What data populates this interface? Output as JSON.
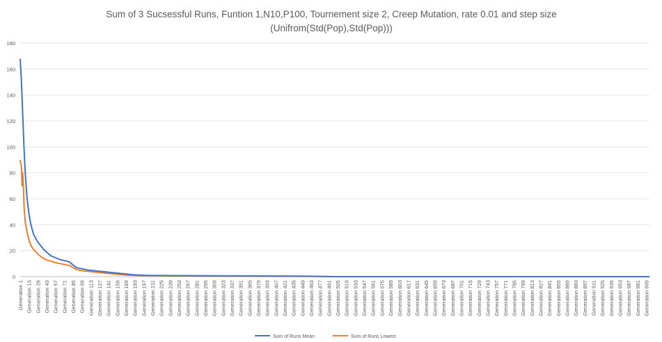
{
  "chart_data": {
    "type": "line",
    "title": "Sum of 3 Sucsessful Runs, Funtion 1,N10,P100, Tournement size 2, Creep Mutation, rate 0.01 and step size",
    "subtitle": "(Unifrom(Std(Pop),Std(Pop)))",
    "xlabel": "",
    "ylabel": "",
    "ylim": [
      0,
      180
    ],
    "yticks": [
      0,
      20,
      40,
      60,
      80,
      100,
      120,
      140,
      160,
      180
    ],
    "xlim": [
      1,
      1000
    ],
    "x_category_prefix": "Generation ",
    "x_tick_labels": [
      "Generation 1",
      "Generation 15",
      "Generation 29",
      "Generation 43",
      "Generation 57",
      "Generation 71",
      "Generation 85",
      "Generation 99",
      "Generation 113",
      "Generation 127",
      "Generation 141",
      "Generation 155",
      "Generation 169",
      "Generation 183",
      "Generation 197",
      "Generation 211",
      "Generation 225",
      "Generation 239",
      "Generation 253",
      "Generation 267",
      "Generation 281",
      "Generation 295",
      "Generation 309",
      "Generation 323",
      "Generation 337",
      "Generation 351",
      "Generation 365",
      "Generation 379",
      "Generation 393",
      "Generation 407",
      "Generation 421",
      "Generation 435",
      "Generation 449",
      "Generation 463",
      "Generation 477",
      "Generation 491",
      "Generation 505",
      "Generation 519",
      "Generation 533",
      "Generation 547",
      "Generation 561",
      "Generation 575",
      "Generation 589",
      "Generation 603",
      "Generation 617",
      "Generation 631",
      "Generation 645",
      "Generation 659",
      "Generation 673",
      "Generation 687",
      "Generation 701",
      "Generation 715",
      "Generation 729",
      "Generation 743",
      "Generation 757",
      "Generation 771",
      "Generation 785",
      "Generation 799",
      "Generation 813",
      "Generation 827",
      "Generation 841",
      "Generation 855",
      "Generation 869",
      "Generation 883",
      "Generation 897",
      "Generation 911",
      "Generation 925",
      "Generation 939",
      "Generation 953",
      "Generation 967",
      "Generation 981",
      "Generation 995"
    ],
    "grid": "horizontal",
    "legend_position": "bottom",
    "series": [
      {
        "name": "Sum of Runs Mean",
        "color": "#4472c4",
        "x": [
          1,
          3,
          5,
          7,
          9,
          12,
          15,
          18,
          22,
          26,
          30,
          35,
          40,
          45,
          50,
          55,
          60,
          65,
          70,
          75,
          80,
          85,
          90,
          100,
          110,
          120,
          130,
          140,
          150,
          160,
          170,
          180,
          190,
          200,
          220,
          250,
          300,
          350,
          400,
          450,
          470,
          480,
          500,
          600,
          700,
          800,
          900,
          1000
        ],
        "y": [
          168,
          150,
          125,
          100,
          80,
          60,
          48,
          40,
          33,
          29,
          26,
          23,
          20,
          18,
          16,
          15,
          14,
          13,
          12.5,
          12,
          11,
          9,
          7,
          6,
          5,
          4.5,
          4,
          3.5,
          3,
          2.5,
          2,
          1.5,
          1.2,
          1,
          0.9,
          0.8,
          0.7,
          0.6,
          0.5,
          0.4,
          0.3,
          0.1,
          0,
          0,
          0,
          0,
          0,
          0
        ]
      },
      {
        "name": "Sum of Runs Lowest",
        "color": "#ed7d31",
        "x": [
          1,
          3,
          4,
          5,
          6,
          7,
          9,
          12,
          15,
          18,
          22,
          26,
          30,
          35,
          40,
          45,
          50,
          55,
          60,
          65,
          70,
          75,
          80,
          85,
          90,
          100,
          110,
          120,
          130,
          140,
          150,
          160,
          170,
          180,
          190,
          200,
          250,
          300,
          350,
          400,
          450,
          480,
          500,
          600,
          700,
          800,
          900,
          1000
        ],
        "y": [
          90,
          84,
          70,
          80,
          72,
          55,
          42,
          34,
          28,
          24,
          21,
          19,
          17,
          15,
          13.5,
          12.5,
          12,
          11,
          10.5,
          10,
          9.5,
          9,
          8.5,
          7,
          5.5,
          4.5,
          4,
          3.5,
          3,
          2.5,
          2,
          1.6,
          1.3,
          1,
          0.9,
          0.8,
          0.6,
          0.5,
          0.4,
          0.3,
          0.2,
          0.1,
          0,
          0,
          0,
          0,
          0,
          0
        ]
      }
    ]
  }
}
